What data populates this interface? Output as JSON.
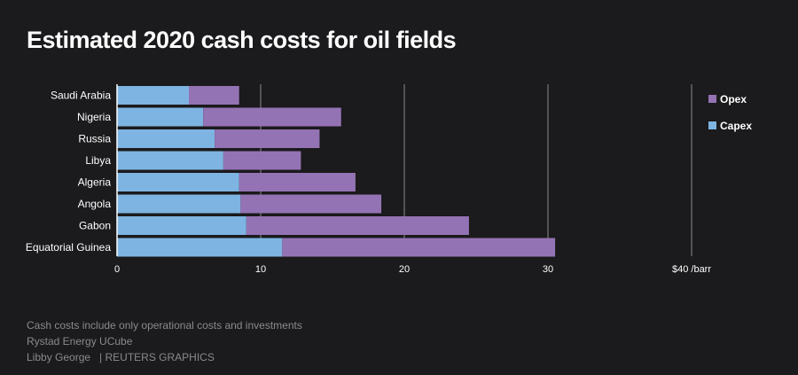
{
  "title": "Estimated 2020 cash costs for oil fields",
  "footer": {
    "note": "Cash costs include only operational costs and investments",
    "source": "Rystad Energy UCube",
    "author": "Libby George",
    "credit": "| REUTERS GRAPHICS"
  },
  "colors": {
    "capex": "#7eb4e2",
    "opex": "#9473b5",
    "grid": "#8c8b8e",
    "axis": "#ffffff",
    "text": "#ffffff"
  },
  "chart_data": {
    "type": "bar",
    "orientation": "horizontal",
    "stacked": true,
    "title": "Estimated 2020 cash costs for oil fields",
    "xlim": [
      0,
      40
    ],
    "x_ticks": [
      "0",
      "10",
      "20",
      "30",
      "$40 /barr"
    ],
    "x_tick_values": [
      0,
      10,
      20,
      30,
      40
    ],
    "grid": true,
    "legend_position": "right",
    "categories": [
      "Saudi Arabia",
      "Nigeria",
      "Russia",
      "Libya",
      "Algeria",
      "Angola",
      "Gabon",
      "Equatorial Guinea"
    ],
    "series": [
      {
        "name": "Capex",
        "values": [
          5.0,
          6.0,
          6.8,
          7.4,
          8.5,
          8.6,
          9.0,
          11.5
        ]
      },
      {
        "name": "Opex",
        "values": [
          3.5,
          9.6,
          7.3,
          5.4,
          8.1,
          9.8,
          15.5,
          19.0
        ]
      }
    ],
    "legend": [
      {
        "name": "Opex",
        "series_index": 1
      },
      {
        "name": "Capex",
        "series_index": 0
      }
    ]
  }
}
